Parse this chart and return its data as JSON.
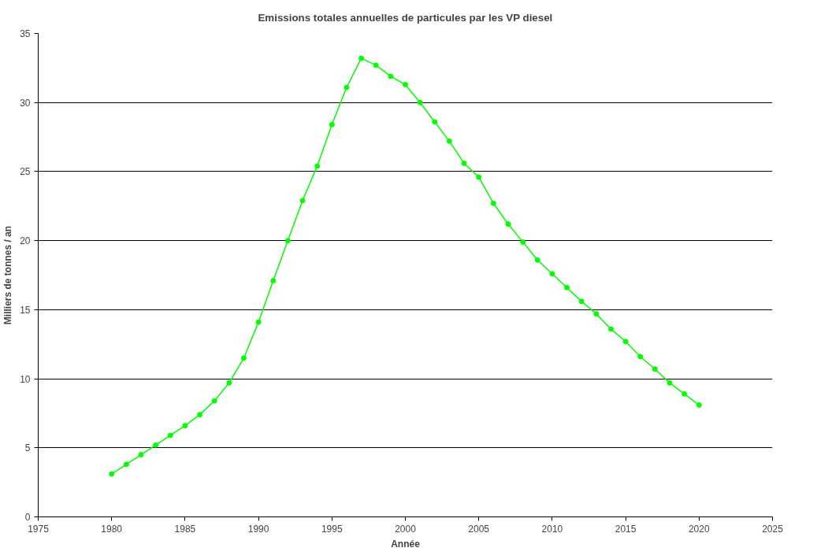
{
  "chart_data": {
    "type": "line",
    "title": "Emissions totales annuelles de particules par les VP diesel",
    "xlabel": "Année",
    "ylabel": "Milliers de tonnes / an",
    "x": [
      1980,
      1981,
      1982,
      1983,
      1984,
      1985,
      1986,
      1987,
      1988,
      1989,
      1990,
      1991,
      1992,
      1993,
      1994,
      1995,
      1996,
      1997,
      1998,
      1999,
      2000,
      2001,
      2002,
      2003,
      2004,
      2005,
      2006,
      2007,
      2008,
      2009,
      2010,
      2011,
      2012,
      2013,
      2014,
      2015,
      2016,
      2017,
      2018,
      2019,
      2020
    ],
    "series": [
      {
        "color": "#00ff00",
        "values": [
          3.1,
          3.8,
          4.5,
          5.2,
          5.9,
          6.6,
          7.4,
          8.4,
          9.7,
          11.5,
          14.1,
          17.1,
          20.0,
          22.9,
          25.4,
          28.4,
          31.1,
          33.2,
          32.7,
          31.9,
          31.3,
          30.0,
          28.6,
          27.2,
          25.6,
          24.6,
          22.7,
          21.2,
          19.9,
          18.6,
          17.6,
          16.6,
          15.6,
          14.7,
          13.6,
          12.7,
          11.6,
          10.7,
          9.7,
          8.9,
          8.1
        ]
      }
    ],
    "xlim": [
      1975,
      2025
    ],
    "xticks": [
      1975,
      1980,
      1985,
      1990,
      1995,
      2000,
      2005,
      2010,
      2015,
      2020,
      2025
    ],
    "ylim": [
      0,
      35
    ],
    "yticks": [
      0,
      5,
      10,
      15,
      20,
      25,
      30,
      35
    ],
    "grid": "y",
    "marker": "circle",
    "line_style": "solid"
  }
}
